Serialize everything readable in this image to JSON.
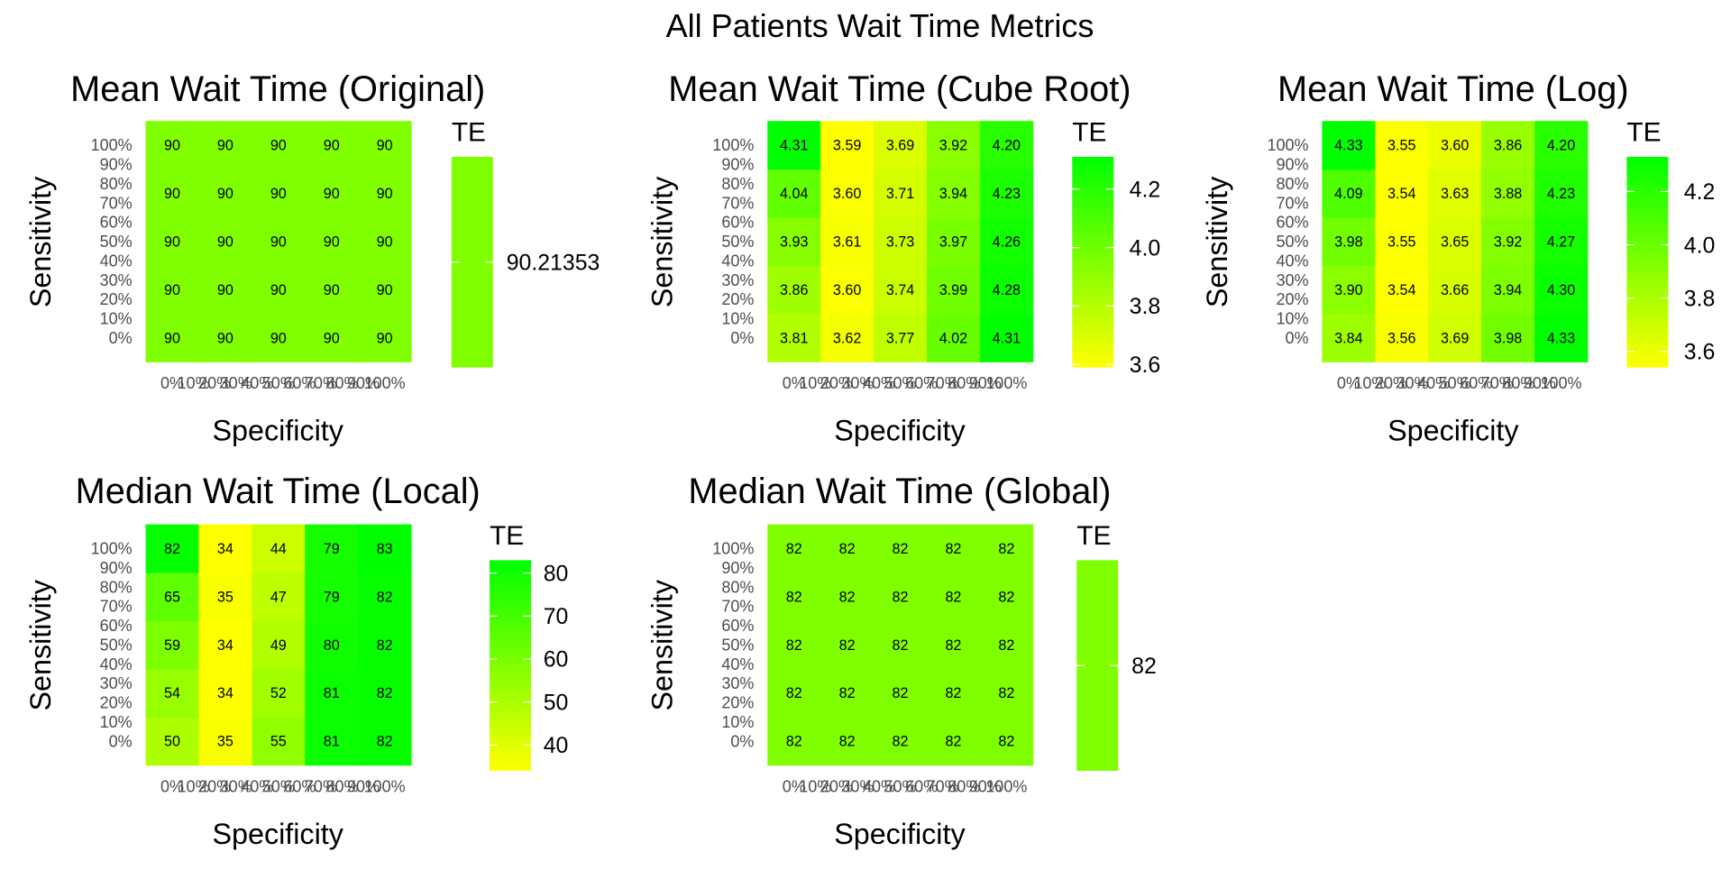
{
  "title": "All Patients Wait Time Metrics",
  "colors": {
    "low": "#FFFF00",
    "high": "#00FF00",
    "text": "#000000",
    "tick": "#4d4d4d"
  },
  "chart_data": [
    {
      "type": "heatmap",
      "title": "Mean Wait Time (Original)",
      "xlabel": "Specificity",
      "ylabel": "Sensitivity",
      "x_ticks": [
        "0%",
        "10%",
        "20%",
        "30%",
        "40%",
        "50%",
        "60%",
        "70%",
        "80%",
        "90%",
        "100%"
      ],
      "y_ticks": [
        "0%",
        "10%",
        "20%",
        "30%",
        "40%",
        "50%",
        "60%",
        "70%",
        "80%",
        "90%",
        "100%"
      ],
      "x_values": [
        0,
        25,
        50,
        75,
        100
      ],
      "y_values": [
        0,
        25,
        50,
        75,
        100
      ],
      "legend_title": "TE",
      "legend_ticks": [
        "90.21353"
      ],
      "value_range": [
        90.21353,
        90.21353
      ],
      "cell_labels": [
        [
          "90",
          "90",
          "90",
          "90",
          "90"
        ],
        [
          "90",
          "90",
          "90",
          "90",
          "90"
        ],
        [
          "90",
          "90",
          "90",
          "90",
          "90"
        ],
        [
          "90",
          "90",
          "90",
          "90",
          "90"
        ],
        [
          "90",
          "90",
          "90",
          "90",
          "90"
        ]
      ],
      "values": [
        [
          90.21353,
          90.21353,
          90.21353,
          90.21353,
          90.21353
        ],
        [
          90.21353,
          90.21353,
          90.21353,
          90.21353,
          90.21353
        ],
        [
          90.21353,
          90.21353,
          90.21353,
          90.21353,
          90.21353
        ],
        [
          90.21353,
          90.21353,
          90.21353,
          90.21353,
          90.21353
        ],
        [
          90.21353,
          90.21353,
          90.21353,
          90.21353,
          90.21353
        ]
      ]
    },
    {
      "type": "heatmap",
      "title": "Mean Wait Time (Cube Root)",
      "xlabel": "Specificity",
      "ylabel": "Sensitivity",
      "x_ticks": [
        "0%",
        "10%",
        "20%",
        "30%",
        "40%",
        "50%",
        "60%",
        "70%",
        "80%",
        "90%",
        "100%"
      ],
      "y_ticks": [
        "0%",
        "10%",
        "20%",
        "30%",
        "40%",
        "50%",
        "60%",
        "70%",
        "80%",
        "90%",
        "100%"
      ],
      "x_values": [
        0,
        25,
        50,
        75,
        100
      ],
      "y_values": [
        0,
        25,
        50,
        75,
        100
      ],
      "legend_title": "TE",
      "legend_ticks": [
        "3.6",
        "3.8",
        "4.0",
        "4.2"
      ],
      "value_range": [
        3.59,
        4.31
      ],
      "cell_labels": [
        [
          "3.81",
          "3.62",
          "3.77",
          "4.02",
          "4.31"
        ],
        [
          "3.86",
          "3.60",
          "3.74",
          "3.99",
          "4.28"
        ],
        [
          "3.93",
          "3.61",
          "3.73",
          "3.97",
          "4.26"
        ],
        [
          "4.04",
          "3.60",
          "3.71",
          "3.94",
          "4.23"
        ],
        [
          "4.31",
          "3.59",
          "3.69",
          "3.92",
          "4.20"
        ]
      ],
      "values": [
        [
          3.81,
          3.62,
          3.77,
          4.02,
          4.31
        ],
        [
          3.86,
          3.6,
          3.74,
          3.99,
          4.28
        ],
        [
          3.93,
          3.61,
          3.73,
          3.97,
          4.26
        ],
        [
          4.04,
          3.6,
          3.71,
          3.94,
          4.23
        ],
        [
          4.31,
          3.59,
          3.69,
          3.92,
          4.2
        ]
      ]
    },
    {
      "type": "heatmap",
      "title": "Mean Wait Time (Log)",
      "xlabel": "Specificity",
      "ylabel": "Sensitivity",
      "x_ticks": [
        "0%",
        "10%",
        "20%",
        "30%",
        "40%",
        "50%",
        "60%",
        "70%",
        "80%",
        "90%",
        "100%"
      ],
      "y_ticks": [
        "0%",
        "10%",
        "20%",
        "30%",
        "40%",
        "50%",
        "60%",
        "70%",
        "80%",
        "90%",
        "100%"
      ],
      "x_values": [
        0,
        25,
        50,
        75,
        100
      ],
      "y_values": [
        0,
        25,
        50,
        75,
        100
      ],
      "legend_title": "TE",
      "legend_ticks": [
        "3.6",
        "3.8",
        "4.0",
        "4.2"
      ],
      "value_range": [
        3.54,
        4.33
      ],
      "cell_labels": [
        [
          "3.84",
          "3.56",
          "3.69",
          "3.98",
          "4.33"
        ],
        [
          "3.90",
          "3.54",
          "3.66",
          "3.94",
          "4.30"
        ],
        [
          "3.98",
          "3.55",
          "3.65",
          "3.92",
          "4.27"
        ],
        [
          "4.09",
          "3.54",
          "3.63",
          "3.88",
          "4.23"
        ],
        [
          "4.33",
          "3.55",
          "3.60",
          "3.86",
          "4.20"
        ]
      ],
      "values": [
        [
          3.84,
          3.56,
          3.69,
          3.98,
          4.33
        ],
        [
          3.9,
          3.54,
          3.66,
          3.94,
          4.3
        ],
        [
          3.98,
          3.55,
          3.65,
          3.92,
          4.27
        ],
        [
          4.09,
          3.54,
          3.63,
          3.88,
          4.23
        ],
        [
          4.33,
          3.55,
          3.6,
          3.86,
          4.2
        ]
      ]
    },
    {
      "type": "heatmap",
      "title": "Median Wait Time (Local)",
      "xlabel": "Specificity",
      "ylabel": "Sensitivity",
      "x_ticks": [
        "0%",
        "10%",
        "20%",
        "30%",
        "40%",
        "50%",
        "60%",
        "70%",
        "80%",
        "90%",
        "100%"
      ],
      "y_ticks": [
        "0%",
        "10%",
        "20%",
        "30%",
        "40%",
        "50%",
        "60%",
        "70%",
        "80%",
        "90%",
        "100%"
      ],
      "x_values": [
        0,
        25,
        50,
        75,
        100
      ],
      "y_values": [
        0,
        25,
        50,
        75,
        100
      ],
      "legend_title": "TE",
      "legend_ticks": [
        "40",
        "50",
        "60",
        "70",
        "80"
      ],
      "value_range": [
        34,
        83
      ],
      "cell_labels": [
        [
          "50",
          "35",
          "55",
          "81",
          "82"
        ],
        [
          "54",
          "34",
          "52",
          "81",
          "82"
        ],
        [
          "59",
          "34",
          "49",
          "80",
          "82"
        ],
        [
          "65",
          "35",
          "47",
          "79",
          "82"
        ],
        [
          "82",
          "34",
          "44",
          "79",
          "83"
        ]
      ],
      "values": [
        [
          50,
          35,
          55,
          81,
          82
        ],
        [
          54,
          34,
          52,
          81,
          82
        ],
        [
          59,
          34,
          49,
          80,
          82
        ],
        [
          65,
          35,
          47,
          79,
          82
        ],
        [
          82,
          34,
          44,
          79,
          83
        ]
      ]
    },
    {
      "type": "heatmap",
      "title": "Median Wait Time (Global)",
      "xlabel": "Specificity",
      "ylabel": "Sensitivity",
      "x_ticks": [
        "0%",
        "10%",
        "20%",
        "30%",
        "40%",
        "50%",
        "60%",
        "70%",
        "80%",
        "90%",
        "100%"
      ],
      "y_ticks": [
        "0%",
        "10%",
        "20%",
        "30%",
        "40%",
        "50%",
        "60%",
        "70%",
        "80%",
        "90%",
        "100%"
      ],
      "x_values": [
        0,
        25,
        50,
        75,
        100
      ],
      "y_values": [
        0,
        25,
        50,
        75,
        100
      ],
      "legend_title": "TE",
      "legend_ticks": [
        "82"
      ],
      "value_range": [
        82,
        82
      ],
      "cell_labels": [
        [
          "82",
          "82",
          "82",
          "82",
          "82"
        ],
        [
          "82",
          "82",
          "82",
          "82",
          "82"
        ],
        [
          "82",
          "82",
          "82",
          "82",
          "82"
        ],
        [
          "82",
          "82",
          "82",
          "82",
          "82"
        ],
        [
          "82",
          "82",
          "82",
          "82",
          "82"
        ]
      ],
      "values": [
        [
          82,
          82,
          82,
          82,
          82
        ],
        [
          82,
          82,
          82,
          82,
          82
        ],
        [
          82,
          82,
          82,
          82,
          82
        ],
        [
          82,
          82,
          82,
          82,
          82
        ],
        [
          82,
          82,
          82,
          82,
          82
        ]
      ]
    }
  ]
}
